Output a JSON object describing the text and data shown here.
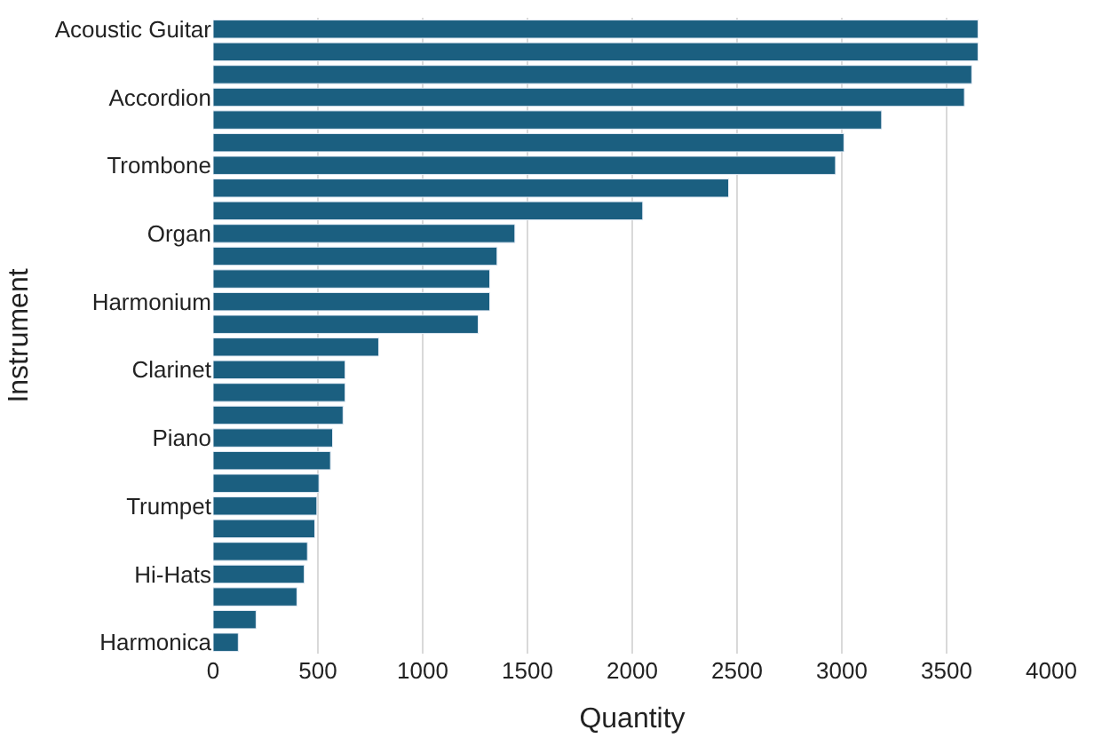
{
  "chart_data": {
    "type": "bar",
    "orientation": "horizontal",
    "xlabel": "Quantity",
    "ylabel": "Instrument",
    "categories": [
      "Acoustic Guitar",
      null,
      null,
      "Accordion",
      null,
      null,
      "Trombone",
      null,
      null,
      "Organ",
      null,
      null,
      "Harmonium",
      null,
      null,
      "Clarinet",
      null,
      null,
      "Piano",
      null,
      null,
      "Trumpet",
      null,
      null,
      "Hi-Hats",
      null,
      null,
      "Harmonica"
    ],
    "values": [
      3650,
      3650,
      3620,
      3585,
      3190,
      3010,
      2970,
      2460,
      2050,
      1440,
      1355,
      1320,
      1320,
      1265,
      790,
      630,
      630,
      620,
      570,
      560,
      505,
      495,
      485,
      450,
      435,
      400,
      205,
      120
    ],
    "color": "#1b5f80",
    "xlim": [
      0,
      4000
    ],
    "xticks": [
      0,
      500,
      1000,
      1500,
      2000,
      2500,
      3000,
      3500,
      4000
    ],
    "grid": "x",
    "legend": false
  }
}
